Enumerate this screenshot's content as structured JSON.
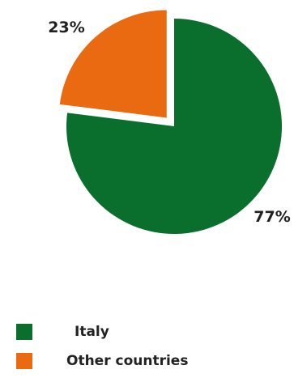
{
  "chart_data": {
    "type": "pie",
    "labels": [
      "Italy",
      "Other countries"
    ],
    "values": [
      77,
      23
    ],
    "value_labels": [
      "77%",
      "23%"
    ],
    "colors": [
      "#0a6e2c",
      "#e96a10"
    ],
    "exploded": "Other countries",
    "legend_position": "bottom"
  },
  "legend": [
    {
      "label": "Italy",
      "color": "#0a6e2c"
    },
    {
      "label": "Other countries",
      "color": "#e96a10"
    }
  ]
}
